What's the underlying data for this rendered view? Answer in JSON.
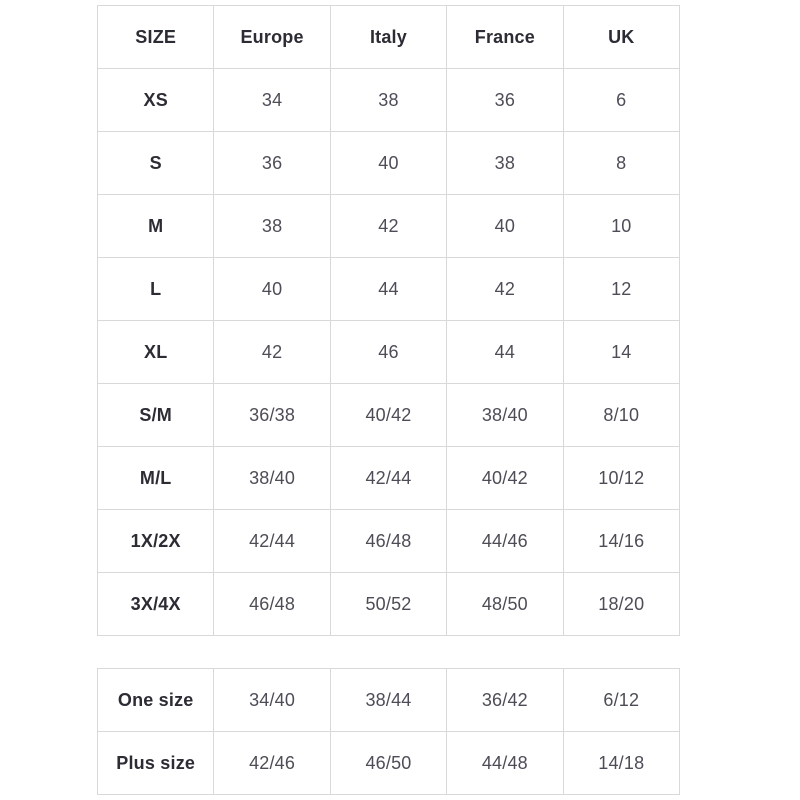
{
  "colors": {
    "background": "#ffffff",
    "border": "#d9d9d9",
    "header_text": "#2c2c34",
    "value_text": "#4d4d57"
  },
  "size_table": {
    "headers": [
      "SIZE",
      "Europe",
      "Italy",
      "France",
      "UK"
    ],
    "rows": [
      {
        "size": "XS",
        "values": [
          "34",
          "38",
          "36",
          "6"
        ]
      },
      {
        "size": "S",
        "values": [
          "36",
          "40",
          "38",
          "8"
        ]
      },
      {
        "size": "M",
        "values": [
          "38",
          "42",
          "40",
          "10"
        ]
      },
      {
        "size": "L",
        "values": [
          "40",
          "44",
          "42",
          "12"
        ]
      },
      {
        "size": "XL",
        "values": [
          "42",
          "46",
          "44",
          "14"
        ]
      },
      {
        "size": "S/M",
        "values": [
          "36/38",
          "40/42",
          "38/40",
          "8/10"
        ]
      },
      {
        "size": "M/L",
        "values": [
          "38/40",
          "42/44",
          "40/42",
          "10/12"
        ]
      },
      {
        "size": "1X/2X",
        "values": [
          "42/44",
          "46/48",
          "44/46",
          "14/16"
        ]
      },
      {
        "size": "3X/4X",
        "values": [
          "46/48",
          "50/52",
          "48/50",
          "18/20"
        ]
      }
    ]
  },
  "special_table": {
    "rows": [
      {
        "size": "One size",
        "values": [
          "34/40",
          "38/44",
          "36/42",
          "6/12"
        ]
      },
      {
        "size": "Plus size",
        "values": [
          "42/46",
          "46/50",
          "44/48",
          "14/18"
        ]
      }
    ]
  }
}
